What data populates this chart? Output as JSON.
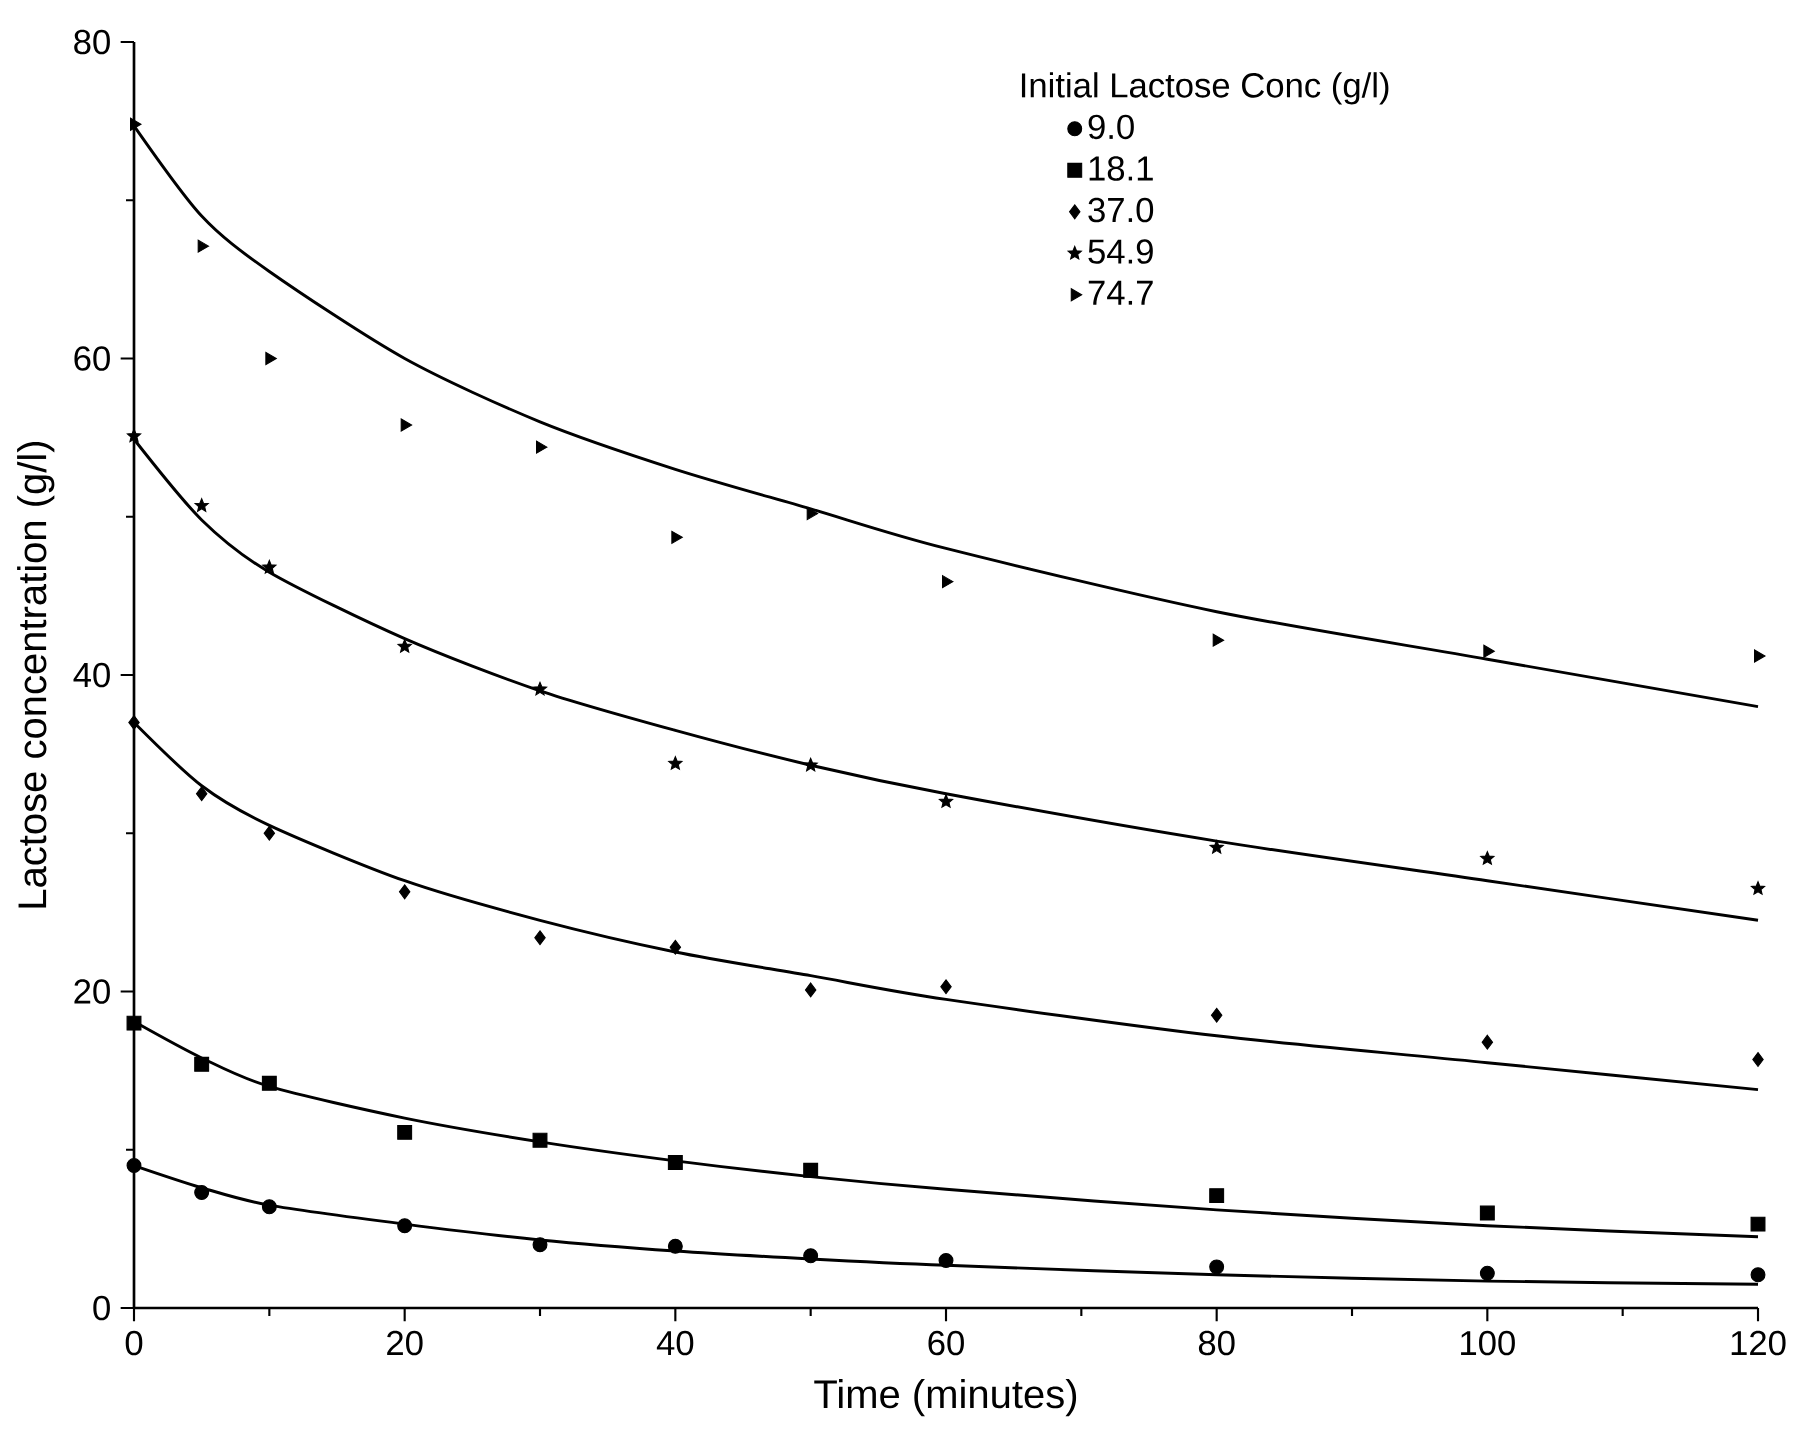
{
  "chart_data": {
    "type": "scatter",
    "xlabel": "Time  (minutes)",
    "ylabel": "Lactose concentration  (g/l)",
    "legend_title": "Initial Lactose Conc  (g/l)",
    "legend": "top right",
    "grid": false,
    "xlim": [
      0,
      120
    ],
    "ylim": [
      0,
      80
    ],
    "xticks": [
      0,
      20,
      40,
      60,
      80,
      100,
      120
    ],
    "yticks": [
      0,
      20,
      40,
      60,
      80
    ],
    "series": [
      {
        "name": "9.0",
        "marker": "circle",
        "color": "#000000",
        "x": [
          0,
          5,
          10,
          20,
          30,
          40,
          50,
          60,
          80,
          100,
          120
        ],
        "values": [
          9.0,
          7.3,
          6.4,
          5.2,
          4.0,
          3.9,
          3.3,
          3.0,
          2.6,
          2.2,
          2.1
        ]
      },
      {
        "name": "18.1",
        "marker": "square",
        "color": "#000000",
        "x": [
          0,
          5,
          10,
          20,
          30,
          40,
          50,
          80,
          100,
          120
        ],
        "values": [
          18.0,
          15.4,
          14.2,
          11.1,
          10.6,
          9.2,
          8.7,
          7.1,
          6.0,
          5.3
        ]
      },
      {
        "name": "37.0",
        "marker": "diamond",
        "color": "#000000",
        "x": [
          0,
          5,
          10,
          20,
          30,
          40,
          50,
          60,
          80,
          100,
          120
        ],
        "values": [
          37.0,
          32.5,
          30.0,
          26.3,
          23.4,
          22.8,
          20.1,
          20.3,
          18.5,
          16.8,
          15.7
        ]
      },
      {
        "name": "54.9",
        "marker": "star",
        "color": "#000000",
        "x": [
          0,
          5,
          10,
          20,
          30,
          40,
          50,
          60,
          80,
          100,
          120
        ],
        "values": [
          55.1,
          50.7,
          46.8,
          41.8,
          39.1,
          34.4,
          34.3,
          32.0,
          29.1,
          28.4,
          26.5
        ]
      },
      {
        "name": "74.7",
        "marker": "triangle",
        "color": "#000000",
        "x": [
          0,
          5,
          10,
          20,
          30,
          40,
          50,
          60,
          80,
          100,
          120
        ],
        "values": [
          74.8,
          67.1,
          60.0,
          55.8,
          54.4,
          48.7,
          50.2,
          45.9,
          42.2,
          41.5,
          41.2
        ]
      },
      {
        "type": "line",
        "line_style": "solid",
        "color": "#000000",
        "x": [
          0,
          5,
          10,
          20,
          30,
          40,
          50,
          60,
          80,
          100,
          120
        ],
        "values": [
          9.0,
          7.6,
          6.5,
          5.3,
          4.3,
          3.6,
          3.1,
          2.7,
          2.1,
          1.7,
          1.5
        ]
      },
      {
        "type": "line",
        "line_style": "solid",
        "color": "#000000",
        "x": [
          0,
          5,
          10,
          20,
          30,
          40,
          50,
          60,
          80,
          100,
          120
        ],
        "values": [
          18.1,
          15.8,
          14.0,
          12.0,
          10.5,
          9.3,
          8.3,
          7.5,
          6.2,
          5.2,
          4.5
        ]
      },
      {
        "type": "line",
        "line_style": "solid",
        "color": "#000000",
        "x": [
          0,
          5,
          10,
          20,
          30,
          40,
          50,
          60,
          80,
          100,
          120
        ],
        "values": [
          37.0,
          33.0,
          30.5,
          27.0,
          24.5,
          22.5,
          21.0,
          19.5,
          17.2,
          15.5,
          13.8
        ]
      },
      {
        "type": "line",
        "line_style": "solid",
        "color": "#000000",
        "x": [
          0,
          5,
          10,
          20,
          30,
          40,
          50,
          60,
          80,
          100,
          120
        ],
        "values": [
          54.9,
          49.8,
          46.5,
          42.3,
          39.0,
          36.5,
          34.3,
          32.5,
          29.5,
          27.0,
          24.5
        ]
      },
      {
        "type": "line",
        "line_style": "solid",
        "color": "#000000",
        "x": [
          0,
          5,
          10,
          20,
          30,
          40,
          50,
          60,
          80,
          100,
          120
        ],
        "values": [
          74.7,
          69.0,
          65.5,
          60.0,
          56.0,
          53.0,
          50.5,
          48.0,
          44.0,
          41.0,
          38.0
        ]
      }
    ]
  }
}
